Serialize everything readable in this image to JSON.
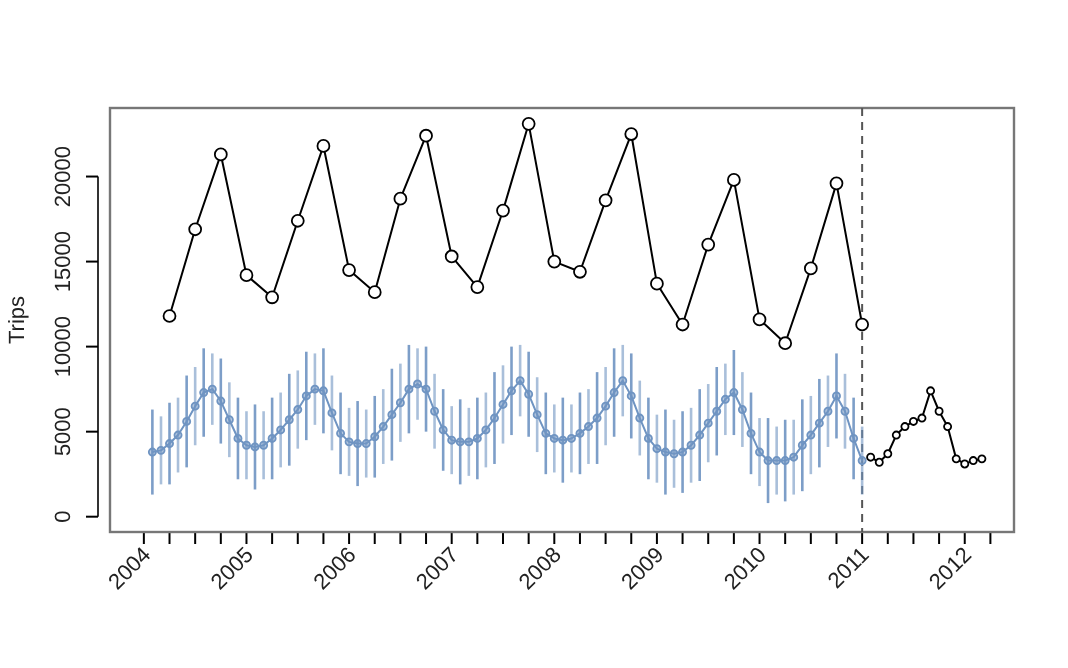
{
  "chart_data": {
    "type": "line",
    "ylabel": "Trips",
    "marker": "circle",
    "grid": false,
    "xlim": [
      2003.67,
      2012.48
    ],
    "ylim": [
      -900,
      24030
    ],
    "xticks": [
      {
        "value": 2004,
        "label": "2004"
      },
      {
        "value": 2004.25,
        "label": null
      },
      {
        "value": 2004.5,
        "label": null
      },
      {
        "value": 2004.75,
        "label": null
      },
      {
        "value": 2005,
        "label": "2005"
      },
      {
        "value": 2005.25,
        "label": null
      },
      {
        "value": 2005.5,
        "label": null
      },
      {
        "value": 2005.75,
        "label": null
      },
      {
        "value": 2006,
        "label": "2006"
      },
      {
        "value": 2006.25,
        "label": null
      },
      {
        "value": 2006.5,
        "label": null
      },
      {
        "value": 2006.75,
        "label": null
      },
      {
        "value": 2007,
        "label": "2007"
      },
      {
        "value": 2007.25,
        "label": null
      },
      {
        "value": 2007.5,
        "label": null
      },
      {
        "value": 2007.75,
        "label": null
      },
      {
        "value": 2008,
        "label": "2008"
      },
      {
        "value": 2008.25,
        "label": null
      },
      {
        "value": 2008.5,
        "label": null
      },
      {
        "value": 2008.75,
        "label": null
      },
      {
        "value": 2009,
        "label": "2009"
      },
      {
        "value": 2009.25,
        "label": null
      },
      {
        "value": 2009.5,
        "label": null
      },
      {
        "value": 2009.75,
        "label": null
      },
      {
        "value": 2010,
        "label": "2010"
      },
      {
        "value": 2010.25,
        "label": null
      },
      {
        "value": 2010.5,
        "label": null
      },
      {
        "value": 2010.75,
        "label": null
      },
      {
        "value": 2011,
        "label": "2011"
      },
      {
        "value": 2011.25,
        "label": null
      },
      {
        "value": 2011.5,
        "label": null
      },
      {
        "value": 2011.75,
        "label": null
      },
      {
        "value": 2012,
        "label": "2012"
      },
      {
        "value": 2012.25,
        "label": null
      }
    ],
    "yticks": [
      0,
      5000,
      10000,
      15000,
      20000
    ],
    "ref_lines": [
      {
        "axis": "x",
        "value": 2011,
        "line_style": "dashed",
        "color": "#555555"
      }
    ],
    "series": [
      {
        "color": "#000000",
        "x": [
          2004.25,
          2004.5,
          2004.75,
          2005,
          2005.25,
          2005.5,
          2005.75,
          2006,
          2006.25,
          2006.5,
          2006.75,
          2007,
          2007.25,
          2007.5,
          2007.75,
          2008,
          2008.25,
          2008.5,
          2008.75,
          2009,
          2009.25,
          2009.5,
          2009.75,
          2010,
          2010.25,
          2010.5,
          2010.75,
          2011
        ],
        "values": [
          11800,
          16900,
          21300,
          14200,
          12900,
          17400,
          21800,
          14500,
          13200,
          18700,
          22400,
          15300,
          13500,
          18000,
          23100,
          15000,
          14400,
          18600,
          22500,
          13700,
          11300,
          16000,
          19800,
          11600,
          10200,
          14600,
          19600,
          11300
        ]
      },
      {
        "color": "#6f94c2",
        "x": [
          2004.083,
          2004.167,
          2004.25,
          2004.333,
          2004.417,
          2004.5,
          2004.583,
          2004.667,
          2004.75,
          2004.833,
          2004.917,
          2005,
          2005.083,
          2005.167,
          2005.25,
          2005.333,
          2005.417,
          2005.5,
          2005.583,
          2005.667,
          2005.75,
          2005.833,
          2005.917,
          2006,
          2006.083,
          2006.167,
          2006.25,
          2006.333,
          2006.417,
          2006.5,
          2006.583,
          2006.667,
          2006.75,
          2006.833,
          2006.917,
          2007,
          2007.083,
          2007.167,
          2007.25,
          2007.333,
          2007.417,
          2007.5,
          2007.583,
          2007.667,
          2007.75,
          2007.833,
          2007.917,
          2008,
          2008.083,
          2008.167,
          2008.25,
          2008.333,
          2008.417,
          2008.5,
          2008.583,
          2008.667,
          2008.75,
          2008.833,
          2008.917,
          2009,
          2009.083,
          2009.167,
          2009.25,
          2009.333,
          2009.417,
          2009.5,
          2009.583,
          2009.667,
          2009.75,
          2009.833,
          2009.917,
          2010,
          2010.083,
          2010.167,
          2010.25,
          2010.333,
          2010.417,
          2010.5,
          2010.583,
          2010.667,
          2010.75,
          2010.833,
          2010.917,
          2011
        ],
        "values": [
          3800,
          3900,
          4300,
          4800,
          5600,
          6500,
          7300,
          7500,
          6800,
          5700,
          4600,
          4200,
          4100,
          4200,
          4600,
          5100,
          5700,
          6300,
          7100,
          7500,
          7400,
          6100,
          4900,
          4400,
          4300,
          4300,
          4700,
          5300,
          6000,
          6700,
          7500,
          7800,
          7500,
          6200,
          5100,
          4500,
          4400,
          4400,
          4600,
          5100,
          5800,
          6600,
          7400,
          8000,
          7200,
          6000,
          4900,
          4600,
          4500,
          4600,
          4900,
          5300,
          5800,
          6500,
          7300,
          8000,
          7100,
          5800,
          4600,
          4000,
          3800,
          3700,
          3800,
          4200,
          4800,
          5500,
          6200,
          6900,
          7300,
          6300,
          4900,
          3800,
          3300,
          3300,
          3300,
          3500,
          4200,
          4800,
          5500,
          6200,
          7100,
          6200,
          4600,
          3300
        ],
        "errors": [
          2500,
          2000,
          2400,
          2200,
          2700,
          2300,
          2600,
          2100,
          2500,
          2200,
          2400,
          2000,
          2500,
          2000,
          2400,
          2200,
          2700,
          2300,
          2600,
          2100,
          2500,
          2200,
          2400,
          2000,
          2500,
          2000,
          2400,
          2200,
          2700,
          2300,
          2600,
          2100,
          2500,
          2200,
          2400,
          2000,
          2500,
          2000,
          2400,
          2200,
          2700,
          2300,
          2600,
          2100,
          2500,
          2200,
          2400,
          2000,
          2500,
          2000,
          2400,
          2200,
          2700,
          2300,
          2600,
          2100,
          2500,
          2200,
          2400,
          2000,
          2500,
          2000,
          2400,
          2200,
          2700,
          2300,
          2600,
          2100,
          2500,
          2200,
          2400,
          2000,
          2500,
          2000,
          2400,
          2200,
          2700,
          2300,
          2600,
          2100,
          2500,
          2200,
          2400,
          2000
        ]
      },
      {
        "color": "#000000",
        "x": [
          2011.083,
          2011.167,
          2011.25,
          2011.333,
          2011.417,
          2011.5,
          2011.583,
          2011.667,
          2011.75,
          2011.833,
          2011.917,
          2012,
          2012.083,
          2012.167
        ],
        "values": [
          3500,
          3200,
          3700,
          4800,
          5300,
          5600,
          5800,
          7400,
          6200,
          5300,
          3400,
          3100,
          3300,
          3400
        ]
      }
    ]
  }
}
